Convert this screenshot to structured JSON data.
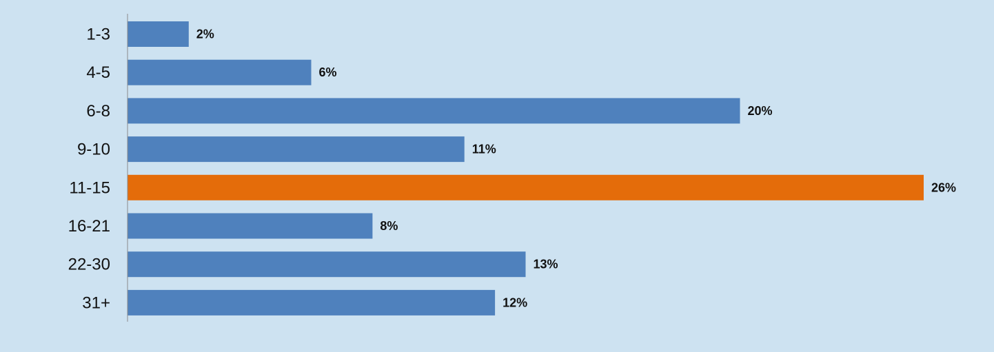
{
  "chart_data": {
    "type": "bar",
    "orientation": "horizontal",
    "categories": [
      "1-3",
      "4-5",
      "6-8",
      "9-10",
      "11-15",
      "16-21",
      "22-30",
      "31+"
    ],
    "values": [
      2,
      6,
      20,
      11,
      26,
      8,
      13,
      12
    ],
    "value_labels": [
      "2%",
      "6%",
      "20%",
      "11%",
      "26%",
      "8%",
      "13%",
      "12%"
    ],
    "title": "",
    "xlabel": "",
    "ylabel": "",
    "xlim": [
      0,
      26
    ],
    "grid": false,
    "legend": "none",
    "colors": {
      "background": "#cde2f1",
      "bar": "#4f81bd",
      "highlight": "#e46c0a",
      "axis": "#8a8a8a"
    },
    "highlight_index": 4
  }
}
